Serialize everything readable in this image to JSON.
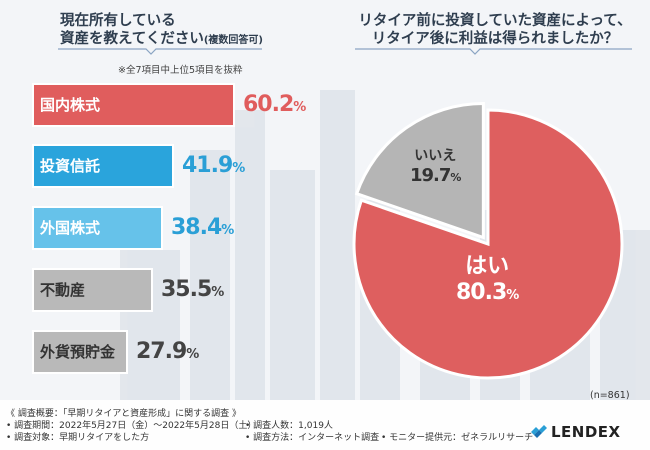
{
  "left_title": {
    "line1": "現在所有している",
    "line2": "資産を教えてください",
    "line2_note": "(複数回答可)"
  },
  "note": "※全7項目中上位5項目を抜粋",
  "right_title": {
    "line1": "リタイア前に投資していた資産によって、",
    "line2": "リタイア後に利益は得られましたか？"
  },
  "sample_size": "(n=861)",
  "footer": {
    "outline": "《 調査概要：「早期リタイアと資産形成」に関する調査 》",
    "period": "• 調査期間：2022年5月27日（金）〜2022年5月28日（土）",
    "respondents": "• 調査人数：1,019人",
    "target": "• 調査対象：早期リタイアをした方",
    "method": "• 調査方法：インターネット調査",
    "provider": "• モニター提供元：ゼネラルリサーチ"
  },
  "logo": {
    "text": "LENDEX",
    "icon": "lendex-logo-icon"
  },
  "colors": {
    "red": "#e05d5d",
    "blue": "#2aa4dc",
    "light_blue": "#66c2ea",
    "gray": "#b9b9b9",
    "pie_red": "#de5f5f",
    "pie_gray": "#b5b5b5"
  },
  "chart_data": [
    {
      "type": "bar",
      "orientation": "horizontal",
      "categories": [
        "国内株式",
        "投資信託",
        "外国株式",
        "不動産",
        "外貨預貯金"
      ],
      "values": [
        60.2,
        41.9,
        38.4,
        35.5,
        27.9
      ],
      "value_labels": [
        "60.2",
        "41.9",
        "38.4",
        "35.5",
        "27.9"
      ],
      "unit": "%",
      "bar_colors": [
        "#e05d5d",
        "#2aa4dc",
        "#66c2ea",
        "#b9b9b9",
        "#b9b9b9"
      ]
    },
    {
      "type": "pie",
      "labels": [
        "はい",
        "いいえ"
      ],
      "values": [
        80.3,
        19.7
      ],
      "value_labels": [
        "80.3",
        "19.7"
      ],
      "unit": "%",
      "colors": [
        "#de5f5f",
        "#b5b5b5"
      ]
    }
  ]
}
